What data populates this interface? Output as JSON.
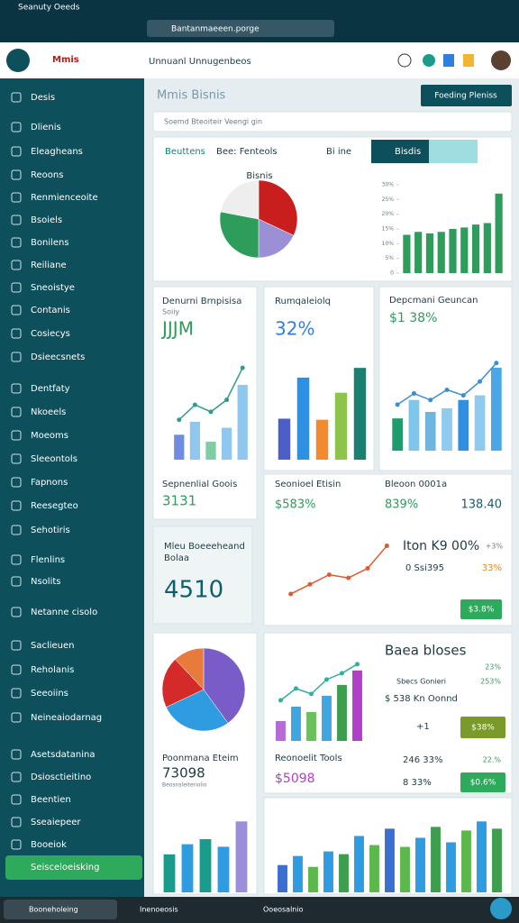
{
  "status_bar": {
    "title": "Seanuty Oeeds"
  },
  "browser": {
    "address": "Bantanmaeeen.porge"
  },
  "header": {
    "logo": "Mmis",
    "title": "Unnuanl Unnugenbeos"
  },
  "sidebar": {
    "items": [
      "Desis",
      "Dlienis",
      "Eleagheans",
      "Reoons",
      "Renmienceoite",
      "Bsoiels",
      "Bonilens",
      "Reiliane",
      "Sneoistye",
      "Contanis",
      "Cosiecys",
      "Dsieecsnets",
      "Dentfaty",
      "Nkoeels",
      "Moeoms",
      "Sleeontols",
      "Fapnons",
      "Reesegteo",
      "Sehotiris",
      "Flenlins",
      "Nsolits",
      "Netanne cisolo",
      "Saclieuen",
      "Reholanis",
      "Seeoiins",
      "Neineaiodarnag",
      "Asetsdatanina",
      "Dsiosctieitino",
      "Beentien",
      "Sseaiepeer",
      "Booeiok"
    ],
    "active": "Seisceloeisking"
  },
  "main": {
    "title": "Mmis Bisnis",
    "button": "Foeding Pleniss",
    "search": "Soemd Bteoiteir Veengi gin",
    "tabs": [
      "Beuttens",
      "Bee: Fenteols",
      "Bi ine",
      "Bisdis"
    ],
    "card1": {
      "title": "Denurni Brnpisisa",
      "subtitle": "Soiiy",
      "kpi": "JJJM",
      "footer_title": "Sepnenlial Goois",
      "footer_kpi": "3131"
    },
    "card2": {
      "title": "Rumqaleiolq",
      "kpi": "32%"
    },
    "card3": {
      "title": "Depcmani Geuncan",
      "kpi": "$1 38%"
    },
    "row": {
      "left_title": "Seonioel Etisin",
      "left_kpi": "$583%",
      "right_title": "Bleoon 0001a",
      "right_kpi": "839%",
      "right_value": "138.40",
      "heading": "Iton K9 00%",
      "heading_delta": "+3%",
      "item": "0 Ssi395",
      "item_value": "33%",
      "button": "$3.8%"
    },
    "promo": {
      "title": "Mleu Boeeeheand",
      "subtitle": "Bolaa",
      "kpi": "4510"
    },
    "lower_left": {
      "title": "Poonmana Eteim",
      "kpi": "73098",
      "subtitle": "Beosnsleiteriolio"
    },
    "lower_right": {
      "title": "Baea bloses",
      "top_value": "23%",
      "item": "Sbecs Gonieri",
      "item_value": "253%",
      "detail": "$ 538 Kn Oonnd",
      "count": "+1",
      "button": "$38%",
      "tools_title": "Reonoelit Tools",
      "tools_kpi": "$5098",
      "stat1": "246 33%",
      "stat1_value": "22.%",
      "stat2": "8 33%",
      "button2": "$0.6%"
    }
  },
  "taskbar": {
    "items": [
      "Booneholeing",
      "Inenoeosis",
      "Ooeosalnio"
    ]
  },
  "chart_data": [
    {
      "type": "pie",
      "title": "Bisnis",
      "values": [
        32,
        18,
        28,
        22
      ],
      "colors": [
        "#c81e1e",
        "#9b8fd6",
        "#2e9c5a",
        "#eeeeee"
      ]
    },
    {
      "type": "bar",
      "ylim": [
        0,
        30
      ],
      "yticks": [
        0,
        {
          "value": 5,
          "label": "5%"
        },
        {
          "value": 10,
          "label": "10%"
        },
        {
          "value": 15,
          "label": "15%"
        },
        {
          "value": 20,
          "label": "20%"
        },
        {
          "value": 25,
          "label": "25%"
        },
        {
          "value": 30,
          "label": "30%"
        }
      ],
      "series": [
        {
          "type": "bar",
          "colors": [
            "#2e9c5a",
            "#2e9c5a",
            "#2e9c5a",
            "#2e9c5a",
            "#2e9c5a",
            "#2e9c5a",
            "#2e9c5a",
            "#2e9c5a",
            "#2e9c5a"
          ],
          "values": [
            13,
            14,
            13.5,
            14,
            15,
            15.5,
            16.5,
            17,
            27
          ]
        }
      ]
    },
    {
      "type": "bar",
      "series": [
        {
          "type": "bar",
          "colors": [
            "#6f8de0",
            "#8fc7ee",
            "#7fcca5",
            "#8fc7ee",
            "#8fc7ee"
          ],
          "values": [
            25,
            38,
            18,
            32,
            75
          ]
        },
        {
          "type": "line",
          "color": "#2d9c8a",
          "values": [
            40,
            55,
            48,
            60,
            92
          ]
        }
      ]
    },
    {
      "type": "bar",
      "series": [
        {
          "type": "bar",
          "colors": [
            "#4c5fc8",
            "#2f8fe0",
            "#f28b30",
            "#8fc44c",
            "#1a8070"
          ],
          "values": [
            38,
            76,
            37,
            62,
            85
          ]
        }
      ]
    },
    {
      "type": "bar",
      "series": [
        {
          "type": "bar",
          "colors": [
            "#1f9c6e",
            "#7fc5ec",
            "#6fb5e0",
            "#8ecbee",
            "#2f8fe0",
            "#8ecbee",
            "#4aa6e6"
          ],
          "values": [
            35,
            55,
            42,
            46,
            55,
            60,
            90
          ]
        },
        {
          "type": "line",
          "color": "#3a8fd0",
          "values": [
            50,
            62,
            55,
            66,
            60,
            75,
            95
          ]
        }
      ]
    },
    {
      "type": "line",
      "series": [
        {
          "type": "line",
          "color": "#e05a30",
          "values": [
            18,
            30,
            42,
            38,
            50,
            78
          ]
        }
      ]
    },
    {
      "type": "pie",
      "values": [
        40,
        28,
        20,
        12
      ],
      "colors": [
        "#7a5cc8",
        "#2f9be0",
        "#d42a2a",
        "#e87a3c"
      ]
    },
    {
      "type": "bar",
      "series": [
        {
          "type": "bar",
          "colors": [
            "#1a9c8c",
            "#2f9be0",
            "#1a9c8c",
            "#2f9be0",
            "#9a8fd8"
          ],
          "values": [
            30,
            38,
            42,
            36,
            56
          ]
        }
      ]
    },
    {
      "type": "bar",
      "series": [
        {
          "type": "bar",
          "colors": [
            "#b66ad8",
            "#3fa6e0",
            "#6cc05a",
            "#3fa6e0",
            "#3d9e4e",
            "#b040c8"
          ],
          "values": [
            22,
            38,
            32,
            50,
            62,
            78
          ]
        },
        {
          "type": "line",
          "color": "#2fb0a0",
          "values": [
            45,
            58,
            52,
            68,
            75,
            85
          ]
        }
      ]
    },
    {
      "type": "bar",
      "series": [
        {
          "type": "bar",
          "colors": [
            "#3a6fd0",
            "#2f9be0",
            "#5cb84c",
            "#2f9be0",
            "#3d9e4e",
            "#2f9be0",
            "#5cb84c",
            "#3a6fd0",
            "#5cb84c",
            "#2f9be0",
            "#3d9e4e",
            "#2f9be0",
            "#5cb84c",
            "#2f9be0",
            "#3d9e4e"
          ],
          "values": [
            30,
            40,
            28,
            45,
            42,
            62,
            52,
            70,
            50,
            60,
            72,
            55,
            68,
            78,
            70
          ]
        }
      ]
    }
  ]
}
